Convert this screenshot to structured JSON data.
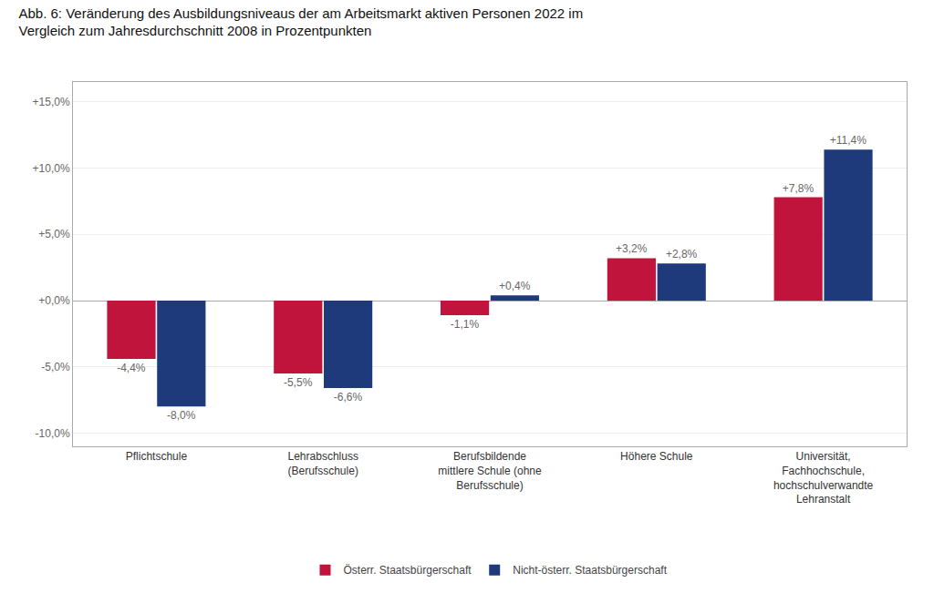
{
  "chart_data": {
    "type": "bar",
    "title": "Abb. 6: Veränderung des Ausbildungsniveaus der am Arbeitsmarkt aktiven Personen 2022 im\nVergleich zum Jahresdurchschnitt 2008 in Prozentpunkten",
    "categories": [
      "Pflichtschule",
      "Lehrabschluss\n(Berufsschule)",
      "Berufsbildende\nmittlere Schule (ohne\nBerufsschule)",
      "Höhere Schule",
      "Universität,\nFachhochschule,\nhochschulverwandte\nLehranstalt"
    ],
    "series": [
      {
        "name": "Österr. Staatsbürgerschaft",
        "color": "#C0143C",
        "values": [
          -4.4,
          -5.5,
          -1.1,
          3.2,
          7.8
        ],
        "value_labels": [
          "-4,4%",
          "-5,5%",
          "-1,1%",
          "+3,2%",
          "+7,8%"
        ]
      },
      {
        "name": "Nicht-österr. Staatsbürgerschaft",
        "color": "#1F3A7A",
        "values": [
          -8.0,
          -6.6,
          0.4,
          2.8,
          11.4
        ],
        "value_labels": [
          "-8,0%",
          "-6,6%",
          "+0,4%",
          "+2,8%",
          "+11,4%"
        ]
      }
    ],
    "ylim": [
      -11,
      16.5
    ],
    "yticks": [
      {
        "value": -10,
        "label": "-10,0%"
      },
      {
        "value": -5,
        "label": "-5,0%"
      },
      {
        "value": 0,
        "label": "+0,0%"
      },
      {
        "value": 5,
        "label": "+5,0%"
      },
      {
        "value": 10,
        "label": "+10,0%"
      },
      {
        "value": 15,
        "label": "+15,0%"
      }
    ],
    "grid": true,
    "data_labels": true,
    "legend": "bottom"
  }
}
